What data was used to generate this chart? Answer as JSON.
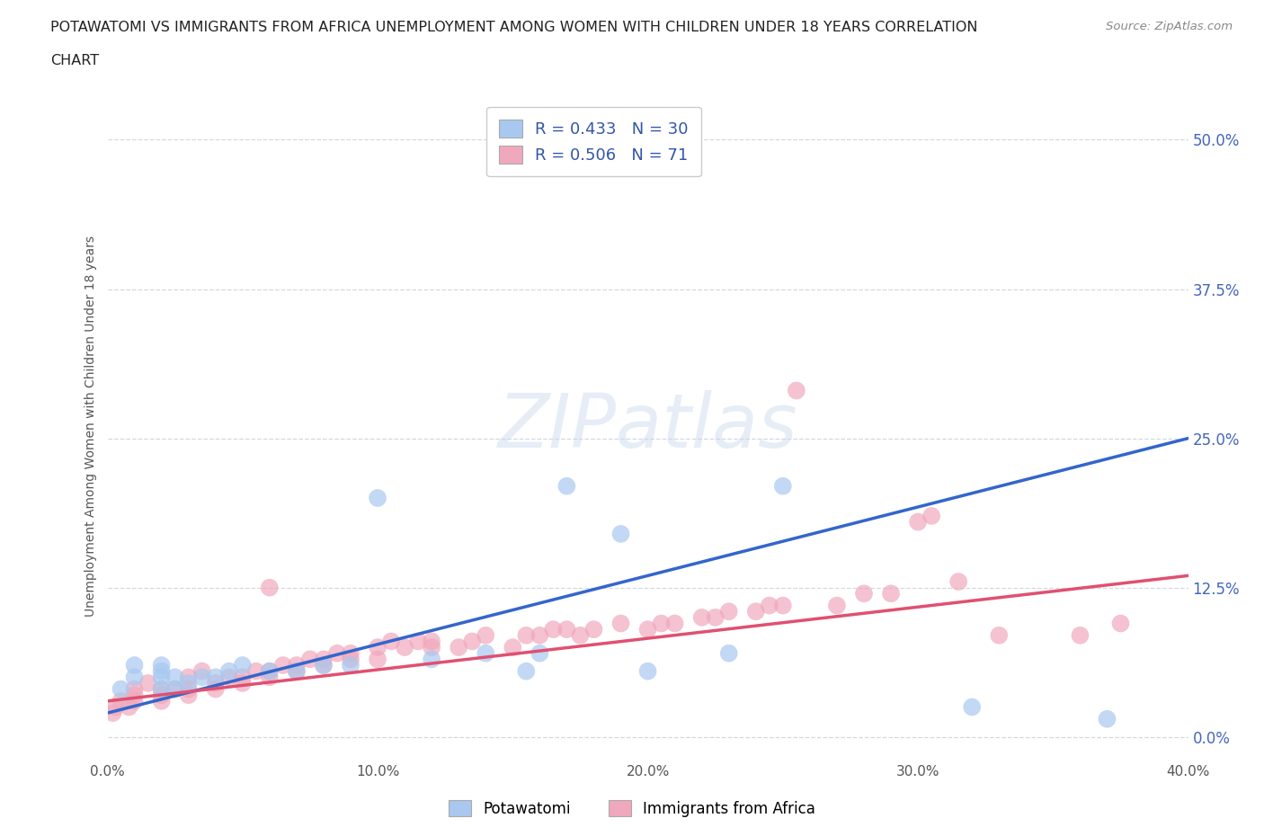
{
  "title_line1": "POTAWATOMI VS IMMIGRANTS FROM AFRICA UNEMPLOYMENT AMONG WOMEN WITH CHILDREN UNDER 18 YEARS CORRELATION",
  "title_line2": "CHART",
  "source": "Source: ZipAtlas.com",
  "ylabel": "Unemployment Among Women with Children Under 18 years",
  "xlim": [
    0.0,
    0.4
  ],
  "ylim": [
    -0.02,
    0.54
  ],
  "xticks": [
    0.0,
    0.1,
    0.2,
    0.3,
    0.4
  ],
  "yticks": [
    0.0,
    0.125,
    0.25,
    0.375,
    0.5
  ],
  "xtick_labels": [
    "0.0%",
    "10.0%",
    "20.0%",
    "30.0%",
    "40.0%"
  ],
  "ytick_labels": [
    "0.0%",
    "12.5%",
    "25.0%",
    "37.5%",
    "50.0%"
  ],
  "grid_color": "#c8d0d8",
  "background_color": "#ffffff",
  "plot_bg_color": "#ffffff",
  "potawatomi_color": "#a8c8f0",
  "africa_color": "#f0a8bc",
  "potawatomi_line_color": "#3366cc",
  "africa_line_color": "#e05070",
  "R_potawatomi": 0.433,
  "N_potawatomi": 30,
  "R_africa": 0.506,
  "N_africa": 71,
  "legend_R_color": "#3355aa",
  "legend_label1": "Potawatomi",
  "legend_label2": "Immigrants from Africa",
  "potawatomi_x": [
    0.005,
    0.01,
    0.01,
    0.02,
    0.02,
    0.02,
    0.02,
    0.025,
    0.025,
    0.03,
    0.035,
    0.04,
    0.045,
    0.05,
    0.06,
    0.07,
    0.08,
    0.09,
    0.1,
    0.12,
    0.14,
    0.155,
    0.16,
    0.17,
    0.19,
    0.2,
    0.23,
    0.25,
    0.32,
    0.37
  ],
  "potawatomi_y": [
    0.04,
    0.05,
    0.06,
    0.04,
    0.05,
    0.055,
    0.06,
    0.04,
    0.05,
    0.045,
    0.05,
    0.05,
    0.055,
    0.06,
    0.055,
    0.055,
    0.06,
    0.06,
    0.2,
    0.065,
    0.07,
    0.055,
    0.07,
    0.21,
    0.17,
    0.055,
    0.07,
    0.21,
    0.025,
    0.015
  ],
  "africa_x": [
    0.002,
    0.003,
    0.005,
    0.008,
    0.01,
    0.01,
    0.01,
    0.015,
    0.02,
    0.02,
    0.02,
    0.025,
    0.03,
    0.03,
    0.03,
    0.035,
    0.04,
    0.04,
    0.045,
    0.05,
    0.05,
    0.055,
    0.06,
    0.06,
    0.06,
    0.065,
    0.07,
    0.07,
    0.075,
    0.08,
    0.08,
    0.085,
    0.09,
    0.09,
    0.1,
    0.1,
    0.105,
    0.11,
    0.115,
    0.12,
    0.12,
    0.13,
    0.135,
    0.14,
    0.15,
    0.155,
    0.16,
    0.165,
    0.17,
    0.175,
    0.18,
    0.19,
    0.2,
    0.205,
    0.21,
    0.22,
    0.225,
    0.23,
    0.24,
    0.245,
    0.25,
    0.255,
    0.27,
    0.28,
    0.29,
    0.3,
    0.305,
    0.315,
    0.33,
    0.36,
    0.375
  ],
  "africa_y": [
    0.02,
    0.025,
    0.03,
    0.025,
    0.03,
    0.035,
    0.04,
    0.045,
    0.03,
    0.035,
    0.04,
    0.04,
    0.035,
    0.04,
    0.05,
    0.055,
    0.04,
    0.045,
    0.05,
    0.045,
    0.05,
    0.055,
    0.05,
    0.055,
    0.125,
    0.06,
    0.055,
    0.06,
    0.065,
    0.06,
    0.065,
    0.07,
    0.065,
    0.07,
    0.065,
    0.075,
    0.08,
    0.075,
    0.08,
    0.075,
    0.08,
    0.075,
    0.08,
    0.085,
    0.075,
    0.085,
    0.085,
    0.09,
    0.09,
    0.085,
    0.09,
    0.095,
    0.09,
    0.095,
    0.095,
    0.1,
    0.1,
    0.105,
    0.105,
    0.11,
    0.11,
    0.29,
    0.11,
    0.12,
    0.12,
    0.18,
    0.185,
    0.13,
    0.085,
    0.085,
    0.095
  ],
  "blue_line_x0": 0.0,
  "blue_line_y0": 0.02,
  "blue_line_x1": 0.4,
  "blue_line_y1": 0.25,
  "pink_line_x0": 0.0,
  "pink_line_y0": 0.03,
  "pink_line_x1": 0.4,
  "pink_line_y1": 0.135
}
